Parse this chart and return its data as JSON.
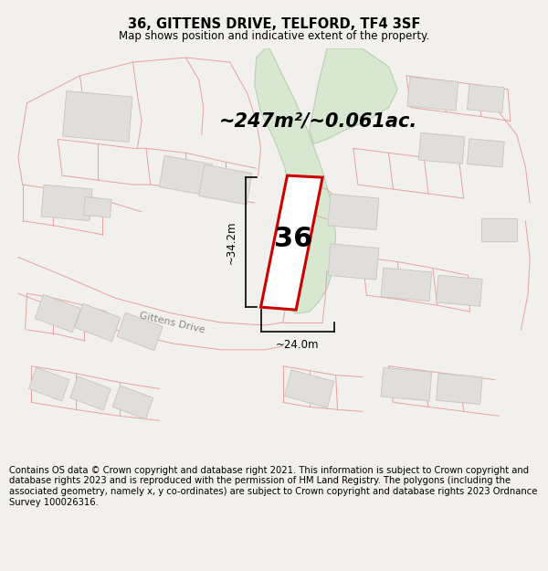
{
  "title_line1": "36, GITTENS DRIVE, TELFORD, TF4 3SF",
  "title_line2": "Map shows position and indicative extent of the property.",
  "area_text": "~247m²/~0.061ac.",
  "number_label": "36",
  "street_label": "Gittens Drive",
  "dim_vertical": "~34.2m",
  "dim_horizontal": "~24.0m",
  "footer_text": "Contains OS data © Crown copyright and database right 2021. This information is subject to Crown copyright and database rights 2023 and is reproduced with the permission of HM Land Registry. The polygons (including the associated geometry, namely x, y co-ordinates) are subject to Crown copyright and database rights 2023 Ordnance Survey 100026316.",
  "bg_color": "#f2f0ec",
  "map_bg": "#ffffff",
  "plot_fill": "#ffffff",
  "plot_edge": "#cc0000",
  "parcel_color": "#e8a0a0",
  "building_fill": "#e0deda",
  "building_edge": "#c8c4c0",
  "green_fill": "#d8e8d0",
  "green_edge": "#b8d0b0",
  "footer_fontsize": 7.2,
  "title_fontsize": 10.5,
  "subtitle_fontsize": 8.5
}
